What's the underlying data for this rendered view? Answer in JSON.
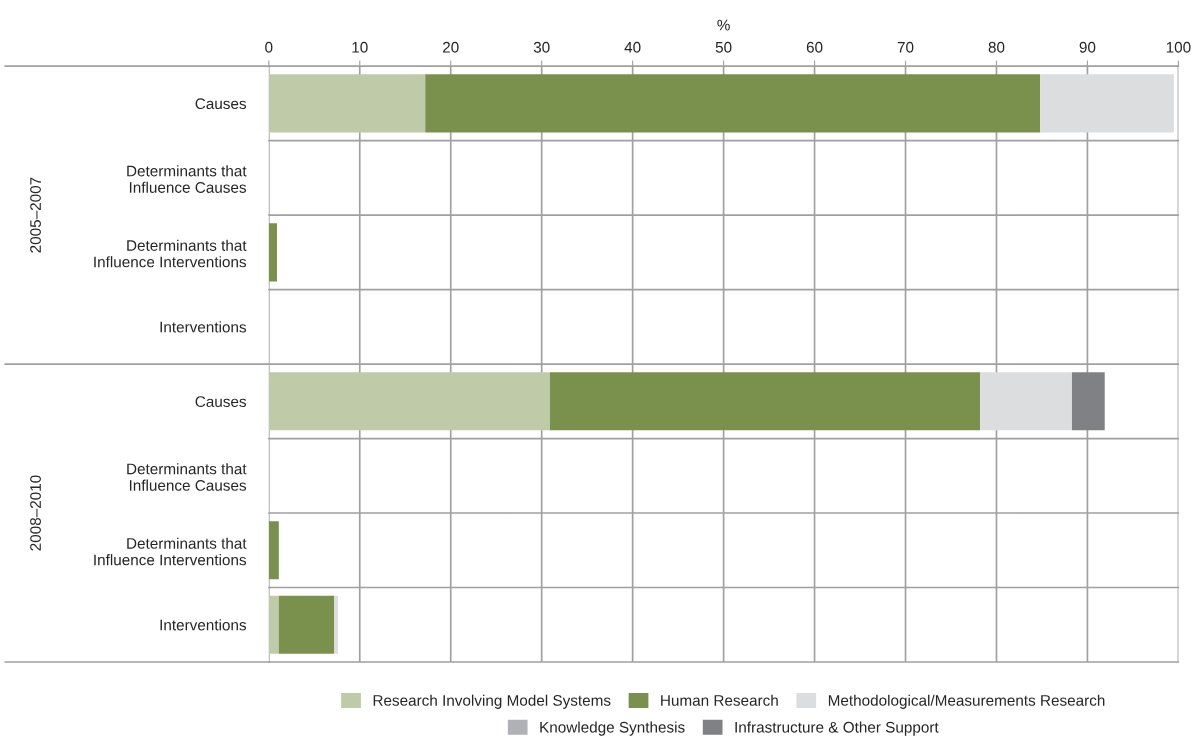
{
  "chart_data": {
    "type": "bar",
    "orientation": "horizontal",
    "stacked": true,
    "xlabel": "%",
    "categories": [
      "Causes",
      "Determinants that\nInfluence Causes",
      "Determinants that\nInfluence Interventions",
      "Interventions",
      "Causes",
      "Determinants that\nInfluence Causes",
      "Determinants that\nInfluence Interventions",
      "Interventions"
    ],
    "series": [
      {
        "name": "Research Involving Model Systems",
        "color": "#bfcba8",
        "values": [
          17.2,
          null,
          null,
          null,
          30.9,
          null,
          null,
          1.1
        ]
      },
      {
        "name": "Human Research",
        "color": "#7a914d",
        "values": [
          67.6,
          null,
          0.9,
          null,
          47.3,
          null,
          1.1,
          6.1
        ]
      },
      {
        "name": "Methodological/Measurements Research",
        "color": "#dcdddf",
        "values": [
          14.7,
          null,
          null,
          null,
          10.1,
          null,
          null,
          0.4
        ]
      },
      {
        "name": "Knowledge Synthesis",
        "color": "#b0b1b4",
        "values": [
          null,
          null,
          null,
          null,
          null,
          null,
          null,
          null
        ]
      },
      {
        "name": "Infrastructure & Other Support",
        "color": "#808184",
        "values": [
          null,
          null,
          null,
          null,
          3.6,
          null,
          null,
          null
        ]
      }
    ],
    "xlim": [
      0,
      100
    ],
    "xticks": [
      0,
      10,
      20,
      30,
      40,
      50,
      60,
      70,
      80,
      90,
      100
    ],
    "grid": true,
    "legend": "bottom",
    "annotations": [
      "2005–2007",
      "2008–2010"
    ]
  }
}
